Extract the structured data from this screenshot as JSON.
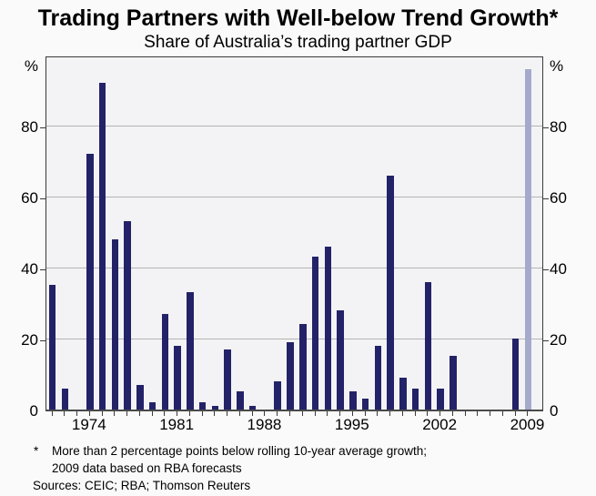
{
  "title": "Trading Partners with Well-below Trend Growth*",
  "subtitle": "Share of Australia’s trading partner GDP",
  "axes": {
    "left_unit": "%",
    "right_unit": "%",
    "yticks": [
      0,
      20,
      40,
      60,
      80
    ],
    "xtick_years": [
      1974,
      1981,
      1988,
      1995,
      2002,
      2009
    ]
  },
  "colors": {
    "bar": "#232268",
    "forecast_bar": "#a5aacd",
    "plot_bg": "#f3f3f5",
    "grid": "#b3b3b3",
    "axis": "#3a3a3a"
  },
  "footnote": {
    "marker": "*",
    "line1": "More than 2 percentage points below rolling 10-year average growth;",
    "line2": "2009 data based on RBA forecasts",
    "sources": "Sources: CEIC; RBA; Thomson Reuters"
  },
  "chart_data": {
    "type": "bar",
    "title": "Trading Partners with Well-below Trend Growth*",
    "subtitle": "Share of Australia’s trading partner GDP",
    "ylabel": "%",
    "ylim": [
      0,
      100
    ],
    "grid": "horizontal",
    "legend": "none",
    "forecast_year": 2009,
    "years": [
      1971,
      1972,
      1973,
      1974,
      1975,
      1976,
      1977,
      1978,
      1979,
      1980,
      1981,
      1982,
      1983,
      1984,
      1985,
      1986,
      1987,
      1988,
      1989,
      1990,
      1991,
      1992,
      1993,
      1994,
      1995,
      1996,
      1997,
      1998,
      1999,
      2000,
      2001,
      2002,
      2003,
      2004,
      2005,
      2006,
      2007,
      2008,
      2009
    ],
    "values": [
      35,
      6,
      0,
      72,
      92,
      48,
      53,
      7,
      2,
      27,
      18,
      33,
      2,
      1,
      17,
      5,
      1,
      0,
      8,
      19,
      24,
      43,
      46,
      28,
      5,
      3,
      18,
      66,
      9,
      6,
      36,
      6,
      15,
      0,
      0,
      0,
      0,
      20,
      96
    ]
  }
}
